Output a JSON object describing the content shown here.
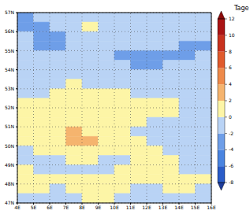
{
  "chart_data": {
    "type": "heatmap",
    "x": [
      4.5,
      5.5,
      6.5,
      7.5,
      8.5,
      9.5,
      10.5,
      11.5,
      12.5,
      13.5,
      14.5,
      15.5
    ],
    "y": [
      56.75,
      56.25,
      55.75,
      55.25,
      54.75,
      54.25,
      53.75,
      53.25,
      52.75,
      52.25,
      51.75,
      51.25,
      50.75,
      50.25,
      49.75,
      49.25,
      48.75,
      48.25,
      47.75,
      47.25
    ],
    "values": [
      [
        -3,
        -1,
        -1,
        -1,
        -1,
        -1,
        -1,
        -1,
        -1,
        -1,
        -1,
        -1
      ],
      [
        -3,
        -3,
        -1,
        -1,
        1,
        -1,
        -1,
        -1,
        -1,
        -1,
        -1,
        -1
      ],
      [
        -1,
        -3,
        -3,
        -1,
        -1,
        -1,
        -1,
        -1,
        -1,
        -1,
        -1,
        -1
      ],
      [
        -1,
        -3,
        -3,
        -1,
        -1,
        -1,
        -1,
        -1,
        -1,
        -1,
        -3,
        -3
      ],
      [
        -1,
        -1,
        -1,
        -1,
        -1,
        -1,
        -3,
        -3,
        -3,
        -3,
        -3,
        -1
      ],
      [
        -1,
        -1,
        -1,
        -1,
        -1,
        -1,
        -1,
        -3,
        -3,
        -1,
        -1,
        -1
      ],
      [
        -1,
        -1,
        -1,
        -1,
        -1,
        -1,
        -1,
        -1,
        -1,
        -1,
        -1,
        -1
      ],
      [
        -1,
        -1,
        -1,
        1,
        -1,
        -1,
        -1,
        -1,
        -1,
        -1,
        -1,
        -1
      ],
      [
        -1,
        -1,
        1,
        1,
        1,
        1,
        1,
        -1,
        -1,
        -1,
        -1,
        -1
      ],
      [
        1,
        1,
        1,
        1,
        1,
        1,
        1,
        1,
        1,
        1,
        -1,
        -1
      ],
      [
        1,
        1,
        1,
        1,
        1,
        1,
        1,
        1,
        1,
        1,
        -1,
        -1
      ],
      [
        1,
        1,
        1,
        1,
        1,
        1,
        1,
        1,
        -1,
        -1,
        -1,
        -1
      ],
      [
        1,
        1,
        1,
        3,
        1,
        1,
        1,
        -1,
        -1,
        -1,
        -1,
        -1
      ],
      [
        1,
        1,
        1,
        3,
        3,
        1,
        1,
        1,
        -1,
        -1,
        -1,
        -1
      ],
      [
        -1,
        1,
        1,
        1,
        1,
        1,
        1,
        1,
        1,
        -1,
        -1,
        -1
      ],
      [
        -1,
        -1,
        -1,
        1,
        1,
        -1,
        -1,
        1,
        1,
        1,
        -1,
        -1
      ],
      [
        1,
        -1,
        -1,
        -1,
        -1,
        -1,
        1,
        1,
        1,
        1,
        -1,
        -1
      ],
      [
        1,
        1,
        1,
        1,
        1,
        1,
        1,
        1,
        1,
        1,
        1,
        1
      ],
      [
        1,
        1,
        -1,
        1,
        1,
        1,
        1,
        -1,
        -1,
        1,
        1,
        -1
      ],
      [
        -1,
        -1,
        -1,
        -1,
        1,
        1,
        -1,
        -1,
        -1,
        -1,
        -1,
        -1
      ]
    ],
    "xlim": [
      4,
      16
    ],
    "ylim": [
      47,
      57
    ],
    "xticks": [
      {
        "value": 4,
        "label": "4E"
      },
      {
        "value": 5,
        "label": "5E"
      },
      {
        "value": 6,
        "label": "6E"
      },
      {
        "value": 7,
        "label": "7E"
      },
      {
        "value": 8,
        "label": "8E"
      },
      {
        "value": 9,
        "label": "9E"
      },
      {
        "value": 10,
        "label": "10E"
      },
      {
        "value": 11,
        "label": "11E"
      },
      {
        "value": 12,
        "label": "12E"
      },
      {
        "value": 13,
        "label": "13E"
      },
      {
        "value": 14,
        "label": "14E"
      },
      {
        "value": 15,
        "label": "15E"
      },
      {
        "value": 16,
        "label": "16E"
      }
    ],
    "yticks": [
      {
        "value": 47,
        "label": "47N"
      },
      {
        "value": 48,
        "label": "48N"
      },
      {
        "value": 49,
        "label": "49N"
      },
      {
        "value": 50,
        "label": "50N"
      },
      {
        "value": 51,
        "label": "51N"
      },
      {
        "value": 52,
        "label": "52N"
      },
      {
        "value": 53,
        "label": "53N"
      },
      {
        "value": 54,
        "label": "54N"
      },
      {
        "value": 55,
        "label": "55N"
      },
      {
        "value": 56,
        "label": "56N"
      },
      {
        "value": 57,
        "label": "57N"
      }
    ],
    "grid": true,
    "colorbar": {
      "label": "Tage",
      "range": [
        -8,
        12
      ],
      "ticks": [
        -8,
        -6,
        -4,
        -2,
        0,
        2,
        4,
        6,
        8,
        10,
        12
      ],
      "colors": [
        "#1e3c9c",
        "#2a5cc8",
        "#4a84e0",
        "#6e9ee8",
        "#b9d3f5",
        "#fdf5a6",
        "#f5b46e",
        "#ee8a4a",
        "#e05a2c",
        "#c8321e",
        "#aa1414",
        "#8c0a0a"
      ]
    }
  }
}
